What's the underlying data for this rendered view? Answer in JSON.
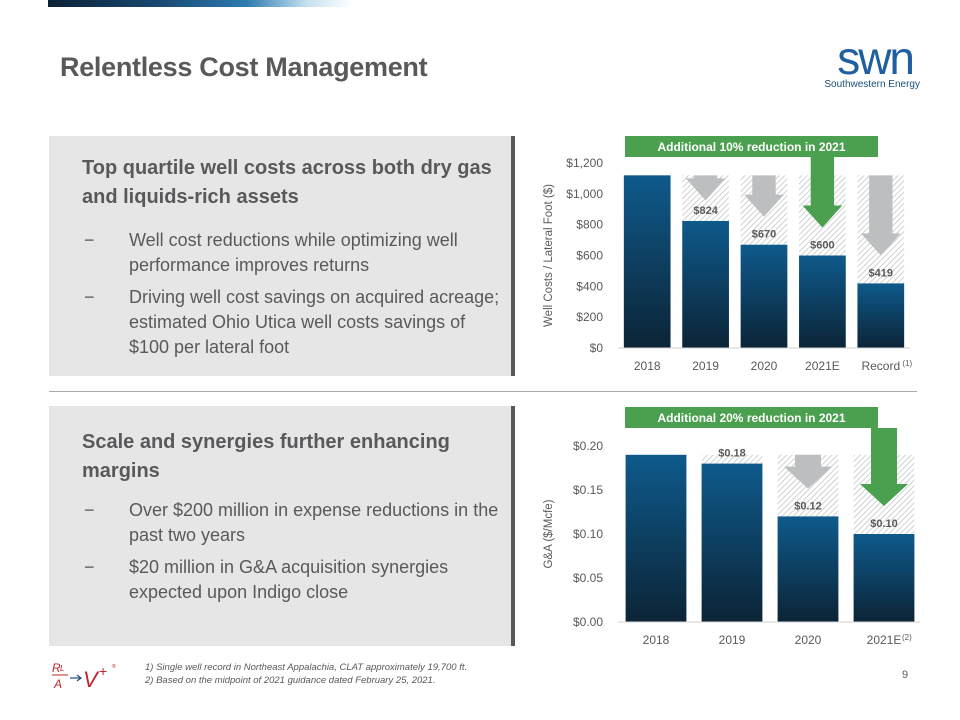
{
  "slide": {
    "title": "Relentless Cost Management",
    "page_number": "9"
  },
  "logo": {
    "mark": "swn",
    "company": "Southwestern Energy"
  },
  "panel1": {
    "heading": "Top quartile well costs across both dry gas and liquids-rich assets",
    "bullets": [
      "Well cost reductions while optimizing well performance improves returns",
      "Driving well cost savings on acquired acreage; estimated Ohio Utica well costs savings of $100 per lateral foot"
    ]
  },
  "panel2": {
    "heading": "Scale and synergies further enhancing margins",
    "bullets": [
      "Over $200 million in expense reductions in the past two years",
      "$20 million  in G&A acquisition synergies expected upon Indigo close"
    ]
  },
  "bullet_dash": "−",
  "footnotes": [
    "1) Single well record in Northeast Appalachia, CLAT approximately 19,700 ft.",
    "2) Based on the midpoint of 2021 guidance dated February 25, 2021."
  ],
  "colors": {
    "bar_top": "#0e5a8c",
    "bar_bottom": "#0c2436",
    "arrow_gray": "#bcbec0",
    "arrow_green": "#4aa04f",
    "banner_green": "#4aa04f",
    "text_gray": "#58595b"
  },
  "chart_data": [
    {
      "type": "bar",
      "banner": "Additional 10% reduction in 2021",
      "ylabel": "Well Costs / Lateral Foot ($)",
      "categories": [
        "2018",
        "2019",
        "2020",
        "2021E",
        "Record"
      ],
      "category_footnotes": [
        "",
        "",
        "",
        "",
        "(1)"
      ],
      "values": [
        1120,
        824,
        670,
        600,
        419
      ],
      "data_labels": [
        "",
        "$824",
        "$670",
        "$600",
        "$419"
      ],
      "ylim": [
        0,
        1200
      ],
      "yticks": [
        0,
        200,
        400,
        600,
        800,
        1000,
        1200
      ],
      "ytick_labels": [
        "$0",
        "$200",
        "$400",
        "$600",
        "$800",
        "$1,000",
        "$1,200"
      ],
      "reference_value": 1120,
      "arrow_colors": [
        "",
        "gray",
        "gray",
        "green",
        "gray"
      ]
    },
    {
      "type": "bar",
      "banner": "Additional 20% reduction in 2021",
      "ylabel": "G&A ($/Mcfe)",
      "categories": [
        "2018",
        "2019",
        "2020",
        "2021E"
      ],
      "category_footnotes": [
        "",
        "",
        "",
        "(2)"
      ],
      "values": [
        0.19,
        0.18,
        0.12,
        0.1
      ],
      "data_labels": [
        "",
        "$0.18",
        "$0.12",
        "$0.10"
      ],
      "ylim": [
        0,
        0.2
      ],
      "yticks": [
        0,
        0.05,
        0.1,
        0.15,
        0.2
      ],
      "ytick_labels": [
        "$0.00",
        "$0.05",
        "$0.10",
        "$0.15",
        "$0.20"
      ],
      "reference_value": 0.19,
      "arrow_colors": [
        "",
        "",
        "gray",
        "green"
      ]
    }
  ]
}
